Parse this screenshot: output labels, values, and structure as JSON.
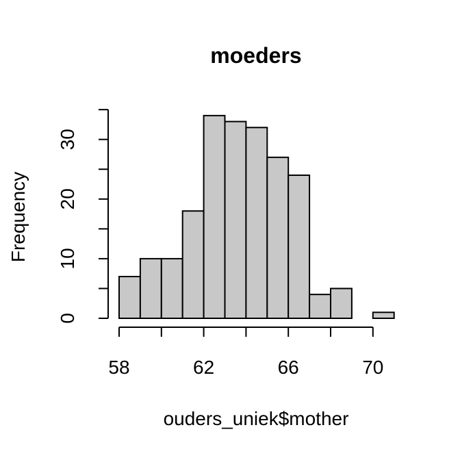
{
  "chart_data": {
    "type": "bar",
    "title": "moeders",
    "xlabel": "ouders_uniek$mother",
    "ylabel": "Frequency",
    "bins": [
      {
        "start": 58,
        "end": 59,
        "count": 7
      },
      {
        "start": 59,
        "end": 60,
        "count": 10
      },
      {
        "start": 60,
        "end": 61,
        "count": 10
      },
      {
        "start": 61,
        "end": 62,
        "count": 18
      },
      {
        "start": 62,
        "end": 63,
        "count": 34
      },
      {
        "start": 63,
        "end": 64,
        "count": 33
      },
      {
        "start": 64,
        "end": 65,
        "count": 32
      },
      {
        "start": 65,
        "end": 66,
        "count": 27
      },
      {
        "start": 66,
        "end": 67,
        "count": 24
      },
      {
        "start": 67,
        "end": 68,
        "count": 4
      },
      {
        "start": 68,
        "end": 69,
        "count": 5
      },
      {
        "start": 69,
        "end": 70,
        "count": 0
      },
      {
        "start": 70,
        "end": 71,
        "count": 1
      }
    ],
    "xlim": [
      58,
      71
    ],
    "ylim": [
      0,
      35
    ],
    "x_ticks": [
      58,
      60,
      62,
      64,
      66,
      68,
      70
    ],
    "x_tick_labels": [
      "58",
      "",
      "62",
      "",
      "66",
      "",
      "70"
    ],
    "y_ticks": [
      0,
      5,
      10,
      15,
      20,
      25,
      30,
      35
    ],
    "y_tick_labels": [
      "0",
      "",
      "10",
      "",
      "20",
      "",
      "30",
      ""
    ],
    "bar_fill": "#c8c8c8",
    "bar_stroke": "#000000",
    "grid": false
  }
}
